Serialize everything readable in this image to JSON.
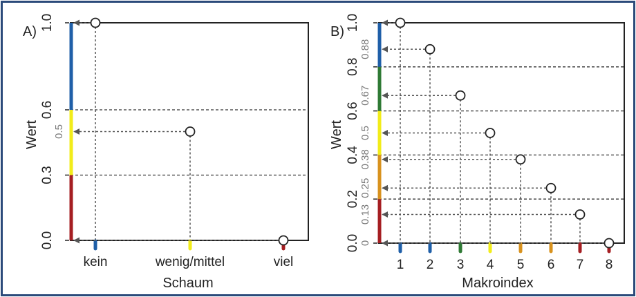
{
  "colors": {
    "border": "#2b4a7a",
    "blue": "#1f5fa8",
    "green": "#2f7a35",
    "yellow": "#f2ec1a",
    "orange": "#d8921e",
    "red": "#a51e22",
    "guide": "#555555"
  },
  "chart_data": [
    {
      "type": "scatter",
      "panel_label": "A)",
      "title": "",
      "xlabel": "Schaum",
      "ylabel": "Wert",
      "categories": [
        "kein",
        "wenig/mittel",
        "viel"
      ],
      "values": [
        1.0,
        0.5,
        0.0
      ],
      "category_colors": [
        "blue",
        "yellow",
        "red"
      ],
      "ylim": [
        0,
        1
      ],
      "yticks": [
        "0.0",
        "0.3",
        "0.6",
        "1.0"
      ],
      "ytick_values": [
        0.0,
        0.3,
        0.6,
        1.0
      ],
      "gridlines": [
        0.3,
        0.6
      ],
      "value_labels": [
        {
          "label": "0.5",
          "value": 0.5
        }
      ],
      "color_bands": [
        {
          "from": 0.0,
          "to": 0.3,
          "color": "red"
        },
        {
          "from": 0.3,
          "to": 0.6,
          "color": "yellow"
        },
        {
          "from": 0.6,
          "to": 1.0,
          "color": "blue"
        }
      ]
    },
    {
      "type": "scatter",
      "panel_label": "B)",
      "title": "",
      "xlabel": "Makroindex",
      "ylabel": "Wert",
      "x": [
        "1",
        "2",
        "3",
        "4",
        "5",
        "6",
        "7",
        "8"
      ],
      "values": [
        1.0,
        0.88,
        0.67,
        0.5,
        0.38,
        0.25,
        0.13,
        0.0
      ],
      "category_colors": [
        "blue",
        "blue",
        "green",
        "yellow",
        "orange",
        "orange",
        "red",
        "red"
      ],
      "ylim": [
        0,
        1
      ],
      "yticks": [
        "0.0",
        "0.2",
        "0.4",
        "0.6",
        "0.8",
        "1.0"
      ],
      "ytick_values": [
        0.0,
        0.2,
        0.4,
        0.6,
        0.8,
        1.0
      ],
      "gridlines": [
        0.2,
        0.4,
        0.6,
        0.8
      ],
      "value_labels": [
        {
          "label": "0.88",
          "value": 0.88
        },
        {
          "label": "0.67",
          "value": 0.67
        },
        {
          "label": "0.5",
          "value": 0.5
        },
        {
          "label": "0.38",
          "value": 0.38
        },
        {
          "label": "0.25",
          "value": 0.25
        },
        {
          "label": "0.13",
          "value": 0.13
        },
        {
          "label": "0",
          "value": 0.0
        }
      ],
      "color_bands": [
        {
          "from": 0.0,
          "to": 0.2,
          "color": "red"
        },
        {
          "from": 0.2,
          "to": 0.4,
          "color": "orange"
        },
        {
          "from": 0.4,
          "to": 0.6,
          "color": "yellow"
        },
        {
          "from": 0.6,
          "to": 0.8,
          "color": "green"
        },
        {
          "from": 0.8,
          "to": 1.0,
          "color": "blue"
        }
      ]
    }
  ]
}
